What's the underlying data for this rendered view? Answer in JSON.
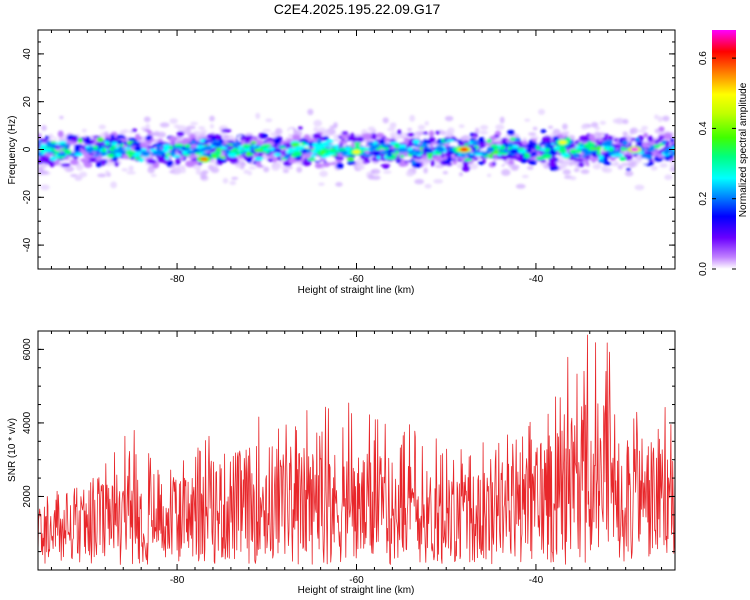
{
  "title": "C2E4.2025.195.22.09.G17",
  "chart_data": [
    {
      "type": "heatmap",
      "panel": "spectrogram",
      "xlabel": "Height of straight line (km)",
      "ylabel": "Frequency (Hz)",
      "xlim": [
        -95.5,
        -24.5
      ],
      "ylim": [
        -50,
        50
      ],
      "xticks": [
        -80,
        -60,
        -40
      ],
      "yticks": [
        -40,
        -20,
        0,
        20,
        40
      ],
      "colorbar": {
        "label": "Normalized spectral amplitude",
        "range": [
          0.0,
          0.68
        ],
        "ticks": [
          0.0,
          0.2,
          0.4,
          0.6
        ],
        "colors": [
          "#ffffff",
          "#c080ff",
          "#6a00ff",
          "#0000ff",
          "#0080ff",
          "#00ffff",
          "#00ff80",
          "#40ff00",
          "#c0ff00",
          "#ffff00",
          "#ff8000",
          "#ff0000",
          "#ff00ff"
        ]
      },
      "band": {
        "center_hz": 0,
        "core_halfwidth_hz": 6,
        "halo_halfwidth_hz": 14,
        "description_peaks": [
          {
            "x_km": -29,
            "y_hz": 0,
            "amp": 0.68
          },
          {
            "x_km": -48,
            "y_hz": 0,
            "amp": 0.62
          },
          {
            "x_km": -77,
            "y_hz": -4,
            "amp": 0.55
          },
          {
            "x_km": -60,
            "y_hz": -1,
            "amp": 0.5
          },
          {
            "x_km": -37,
            "y_hz": 3,
            "amp": 0.5
          }
        ]
      }
    },
    {
      "type": "line",
      "panel": "snr",
      "xlabel": "Height of straight line (km)",
      "ylabel": "SNR (10 * v/v)",
      "xlim": [
        -95.5,
        -24.5
      ],
      "ylim": [
        0,
        6500
      ],
      "xticks": [
        -80,
        -60,
        -40
      ],
      "yticks": [
        2000,
        4000,
        6000
      ],
      "series": [
        {
          "color": "#e8262a",
          "envelope": {
            "x": [
              -95.5,
              -90,
              -85,
              -80,
              -75,
              -70,
              -65,
              -60,
              -55,
              -50,
              -45,
              -40,
              -36,
              -33,
              -30,
              -27,
              -24.5
            ],
            "peak": [
              2100,
              2300,
              3900,
              2800,
              4300,
              4900,
              4600,
              4600,
              4300,
              3700,
              3500,
              4200,
              6400,
              6400,
              5800,
              4500,
              4400
            ],
            "typical": [
              1100,
              1200,
              1700,
              1500,
              1900,
              2100,
              2000,
              1900,
              1800,
              1500,
              1600,
              2200,
              2800,
              2900,
              2600,
              2200,
              2000
            ]
          }
        }
      ]
    }
  ]
}
